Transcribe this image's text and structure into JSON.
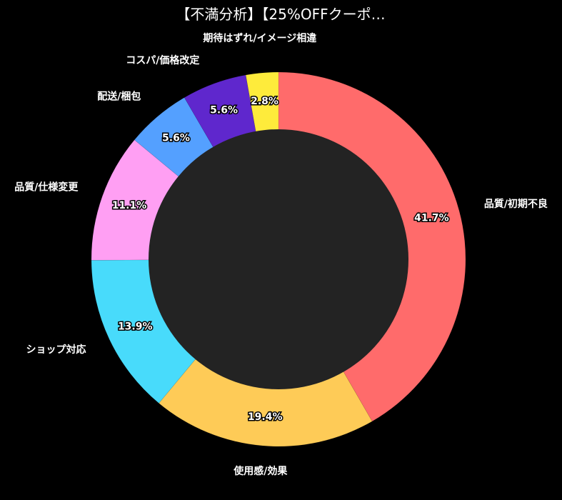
{
  "chart_data": {
    "type": "pie",
    "donut": true,
    "title": "【不満分析】【25%OFFクーポ…",
    "categories": [
      "品質/初期不良",
      "使用感/効果",
      "ショップ対応",
      "品質/仕様変更",
      "配送/梱包",
      "コスパ/価格改定",
      "期待はずれ/イメージ相違"
    ],
    "values": [
      41.7,
      19.4,
      13.9,
      11.1,
      5.6,
      5.6,
      2.8
    ],
    "labels": [
      "41.7%",
      "19.4%",
      "13.9%",
      "11.1%",
      "5.6%",
      "5.6%",
      "2.8%"
    ],
    "colors": [
      "#ff6b6b",
      "#fecb57",
      "#48dbfb",
      "#ff9ff3",
      "#54a0ff",
      "#5f27cd",
      "#feeb3b"
    ],
    "center_color": "#232323",
    "background": "#000000",
    "start_angle_deg": 90,
    "direction": "clockwise",
    "legend": "none"
  }
}
